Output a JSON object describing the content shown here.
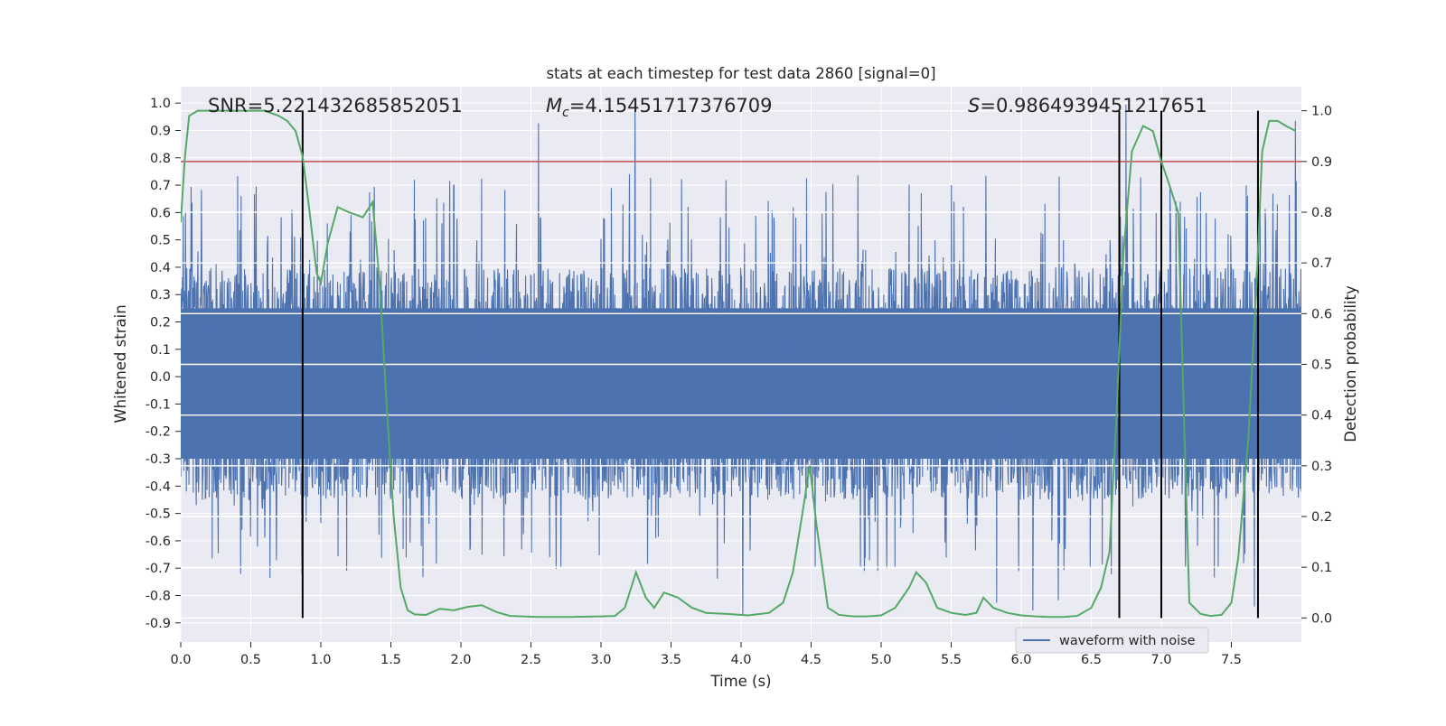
{
  "chart_data": {
    "type": "line",
    "title": "stats at each timestep for test data 2860 [signal=0]",
    "xlabel": "Time (s)",
    "ylabel": "Whitened strain",
    "y2label": "Detection probability",
    "xlim": [
      0.0,
      8.0
    ],
    "ylim": [
      -0.97,
      1.06
    ],
    "y2lim": [
      -0.0475,
      1.0475
    ],
    "xticks": [
      "0.0",
      "0.5",
      "1.0",
      "1.5",
      "2.0",
      "2.5",
      "3.0",
      "3.5",
      "4.0",
      "4.5",
      "5.0",
      "5.5",
      "6.0",
      "6.5",
      "7.0",
      "7.5"
    ],
    "yticks": [
      "1.0",
      "0.9",
      "0.8",
      "0.7",
      "0.6",
      "0.5",
      "0.4",
      "0.3",
      "0.2",
      "0.1",
      "0.0",
      "-0.1",
      "-0.2",
      "-0.3",
      "-0.4",
      "-0.5",
      "-0.6",
      "-0.7",
      "-0.8",
      "-0.9"
    ],
    "y2ticks": [
      "0.0",
      "0.1",
      "0.2",
      "0.3",
      "0.4",
      "0.5",
      "0.6",
      "0.7",
      "0.8",
      "0.9",
      "1.0"
    ],
    "annotations": {
      "snr": "SNR=5.221432685852051",
      "mc_symbol": "M",
      "mc_sub": "c",
      "mc_value": "=4.15451717376709",
      "s_symbol": "S",
      "s_value": "=0.9864939451217651"
    },
    "threshold_line": {
      "axis": "y2",
      "value": 0.9,
      "color": "#c44e52"
    },
    "vertical_lines": [
      0.87,
      6.7,
      7.0,
      7.69
    ],
    "legend": {
      "label": "waveform with noise",
      "location": "lower-right"
    },
    "waveform": {
      "name": "waveform with noise",
      "color": "#4c72b0",
      "axis": "y",
      "typical_range": [
        -0.3,
        0.4
      ],
      "peak_max": 1.0,
      "peak_min": -0.87
    },
    "series": [
      {
        "name": "detection probability",
        "axis": "y2",
        "color": "#55a868",
        "x": [
          0.0,
          0.03,
          0.06,
          0.12,
          0.2,
          0.3,
          0.45,
          0.6,
          0.7,
          0.76,
          0.82,
          0.87,
          0.92,
          0.97,
          1.0,
          1.05,
          1.12,
          1.2,
          1.3,
          1.37,
          1.42,
          1.47,
          1.52,
          1.57,
          1.62,
          1.67,
          1.75,
          1.85,
          1.95,
          2.05,
          2.15,
          2.25,
          2.35,
          2.55,
          2.8,
          3.0,
          3.1,
          3.17,
          3.25,
          3.32,
          3.38,
          3.45,
          3.55,
          3.65,
          3.75,
          3.9,
          4.05,
          4.2,
          4.3,
          4.37,
          4.44,
          4.49,
          4.54,
          4.62,
          4.7,
          4.8,
          4.9,
          5.0,
          5.1,
          5.2,
          5.25,
          5.32,
          5.4,
          5.5,
          5.6,
          5.68,
          5.73,
          5.8,
          5.9,
          6.0,
          6.1,
          6.2,
          6.3,
          6.4,
          6.5,
          6.57,
          6.63,
          6.68,
          6.73,
          6.79,
          6.87,
          6.94,
          7.0,
          7.05,
          7.12,
          7.2,
          7.28,
          7.35,
          7.43,
          7.5,
          7.55,
          7.62,
          7.68,
          7.72,
          7.77,
          7.83,
          7.89,
          7.96
        ],
        "values": [
          0.78,
          0.91,
          0.99,
          1.0,
          1.0,
          1.0,
          1.0,
          1.0,
          0.99,
          0.98,
          0.96,
          0.91,
          0.8,
          0.68,
          0.66,
          0.74,
          0.81,
          0.8,
          0.79,
          0.82,
          0.66,
          0.42,
          0.2,
          0.06,
          0.015,
          0.007,
          0.006,
          0.018,
          0.015,
          0.022,
          0.025,
          0.012,
          0.004,
          0.002,
          0.002,
          0.003,
          0.004,
          0.02,
          0.09,
          0.04,
          0.02,
          0.05,
          0.04,
          0.02,
          0.01,
          0.008,
          0.005,
          0.01,
          0.03,
          0.09,
          0.21,
          0.3,
          0.18,
          0.02,
          0.006,
          0.003,
          0.003,
          0.005,
          0.02,
          0.06,
          0.09,
          0.07,
          0.02,
          0.01,
          0.006,
          0.01,
          0.04,
          0.02,
          0.01,
          0.005,
          0.003,
          0.002,
          0.002,
          0.004,
          0.02,
          0.06,
          0.13,
          0.4,
          0.72,
          0.92,
          0.97,
          0.96,
          0.9,
          0.86,
          0.8,
          0.03,
          0.008,
          0.004,
          0.006,
          0.03,
          0.12,
          0.35,
          0.66,
          0.92,
          0.98,
          0.98,
          0.97,
          0.96
        ]
      }
    ]
  }
}
